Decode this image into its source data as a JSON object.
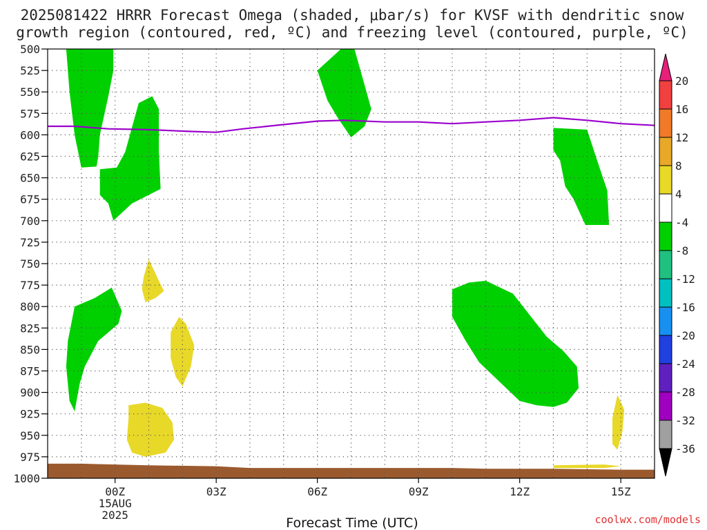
{
  "chart_data": {
    "type": "time-height cross section",
    "title_line1": "2025081422 HRRR Forecast Omega (shaded, μbar/s) for KVSF with dendritic snow",
    "title_line2": "growth region (contoured, red, ºC) and freezing level (contoured, purple, ºC)",
    "xlabel": "Forecast Time (UTC)",
    "credit": "coolwx.com/models",
    "x_unit": "forecast hour (0 = 00Z 15AUG 2025)",
    "xlim": [
      -2,
      16
    ],
    "ylim": [
      1000,
      500
    ],
    "x_ticks": [
      {
        "x": 0,
        "lines": [
          "00Z",
          "15AUG",
          "2025"
        ]
      },
      {
        "x": 3,
        "lines": [
          "03Z"
        ]
      },
      {
        "x": 6,
        "lines": [
          "06Z"
        ]
      },
      {
        "x": 9,
        "lines": [
          "09Z"
        ]
      },
      {
        "x": 12,
        "lines": [
          "12Z"
        ]
      },
      {
        "x": 15,
        "lines": [
          "15Z"
        ]
      }
    ],
    "y_ticks": [
      500,
      525,
      550,
      575,
      600,
      625,
      650,
      675,
      700,
      725,
      750,
      775,
      800,
      825,
      850,
      875,
      900,
      925,
      950,
      975,
      1000
    ],
    "gridlines": true,
    "colorbar": {
      "labels": [
        "20",
        "16",
        "12",
        "8",
        "4",
        "-4",
        "-8",
        "-12",
        "-16",
        "-20",
        "-24",
        "-28",
        "-32",
        "-36"
      ],
      "colors": [
        "#e8207a",
        "#f04040",
        "#f07a28",
        "#e8a828",
        "#e8d828",
        "#ffffff",
        "#00d000",
        "#20c080",
        "#00c0c0",
        "#1890f0",
        "#2040e0",
        "#6020c0",
        "#a000c0",
        "#a0a0a0",
        "#000000"
      ]
    },
    "freezing_level": {
      "color": "#9b00cc",
      "points": [
        [
          -2,
          590
        ],
        [
          -1.2,
          590
        ],
        [
          -0.2,
          593
        ],
        [
          1,
          594
        ],
        [
          2.2,
          596
        ],
        [
          3,
          597
        ],
        [
          3.8,
          593
        ],
        [
          5,
          588
        ],
        [
          6,
          584
        ],
        [
          6.8,
          583
        ],
        [
          8,
          585
        ],
        [
          9,
          585
        ],
        [
          10,
          587
        ],
        [
          11,
          585
        ],
        [
          12,
          583
        ],
        [
          13,
          580
        ],
        [
          14,
          583
        ],
        [
          15,
          587
        ],
        [
          16,
          589
        ]
      ]
    },
    "omega_regions": [
      {
        "color": "#00d000",
        "value_range": [
          -8,
          -4
        ],
        "points": [
          [
            -1.45,
            500
          ],
          [
            -0.05,
            500
          ],
          [
            -0.05,
            525
          ],
          [
            -0.2,
            555
          ],
          [
            -0.45,
            600
          ],
          [
            -0.5,
            625
          ],
          [
            -0.55,
            637
          ],
          [
            -1.0,
            638
          ],
          [
            -1.2,
            600
          ],
          [
            -1.35,
            550
          ]
        ]
      },
      {
        "color": "#00d000",
        "value_range": [
          -8,
          -4
        ],
        "points": [
          [
            0.7,
            563
          ],
          [
            1.1,
            555
          ],
          [
            1.3,
            570
          ],
          [
            1.3,
            620
          ],
          [
            1.35,
            663
          ],
          [
            0.5,
            680
          ],
          [
            -0.05,
            700
          ],
          [
            -0.2,
            680
          ],
          [
            -0.45,
            670
          ],
          [
            -0.45,
            640
          ],
          [
            0.05,
            638
          ],
          [
            0.3,
            620
          ]
        ]
      },
      {
        "color": "#00d000",
        "value_range": [
          -8,
          -4
        ],
        "points": [
          [
            6.7,
            500
          ],
          [
            7.1,
            500
          ],
          [
            7.35,
            535
          ],
          [
            7.6,
            570
          ],
          [
            7.4,
            590
          ],
          [
            7.0,
            603
          ],
          [
            6.6,
            580
          ],
          [
            6.3,
            560
          ],
          [
            6.0,
            525
          ]
        ]
      },
      {
        "color": "#00d000",
        "value_range": [
          -8,
          -4
        ],
        "points": [
          [
            13.0,
            592
          ],
          [
            14.0,
            594
          ],
          [
            14.3,
            630
          ],
          [
            14.6,
            665
          ],
          [
            14.65,
            705
          ],
          [
            13.95,
            705
          ],
          [
            13.6,
            675
          ],
          [
            13.35,
            660
          ],
          [
            13.2,
            630
          ],
          [
            13.0,
            618
          ]
        ]
      },
      {
        "color": "#00d000",
        "value_range": [
          -8,
          -4
        ],
        "points": [
          [
            -1.2,
            800
          ],
          [
            -0.6,
            790
          ],
          [
            -0.1,
            778
          ],
          [
            0.2,
            805
          ],
          [
            0.1,
            820
          ],
          [
            -0.5,
            840
          ],
          [
            -0.9,
            870
          ],
          [
            -1.05,
            890
          ],
          [
            -1.2,
            922
          ],
          [
            -1.35,
            910
          ],
          [
            -1.45,
            870
          ],
          [
            -1.4,
            840
          ]
        ]
      },
      {
        "color": "#00d000",
        "value_range": [
          -8,
          -4
        ],
        "points": [
          [
            10.0,
            780
          ],
          [
            10.5,
            772
          ],
          [
            11.0,
            770
          ],
          [
            11.8,
            785
          ],
          [
            12.4,
            815
          ],
          [
            12.8,
            835
          ],
          [
            13.3,
            852
          ],
          [
            13.7,
            870
          ],
          [
            13.75,
            895
          ],
          [
            13.4,
            912
          ],
          [
            13.0,
            917
          ],
          [
            12.5,
            915
          ],
          [
            12.0,
            910
          ],
          [
            11.6,
            895
          ],
          [
            10.8,
            865
          ],
          [
            10.4,
            840
          ],
          [
            10.0,
            812
          ]
        ]
      },
      {
        "color": "#e8d828",
        "value_range": [
          4,
          8
        ],
        "points": [
          [
            1.0,
            745
          ],
          [
            1.3,
            770
          ],
          [
            1.45,
            782
          ],
          [
            1.2,
            790
          ],
          [
            0.9,
            795
          ],
          [
            0.8,
            780
          ],
          [
            0.85,
            765
          ]
        ]
      },
      {
        "color": "#e8d828",
        "value_range": [
          4,
          8
        ],
        "points": [
          [
            1.9,
            812
          ],
          [
            2.1,
            820
          ],
          [
            2.35,
            845
          ],
          [
            2.25,
            870
          ],
          [
            2.0,
            893
          ],
          [
            1.8,
            882
          ],
          [
            1.65,
            860
          ],
          [
            1.65,
            830
          ]
        ]
      },
      {
        "color": "#e8d828",
        "value_range": [
          4,
          8
        ],
        "points": [
          [
            0.4,
            915
          ],
          [
            0.9,
            912
          ],
          [
            1.4,
            918
          ],
          [
            1.7,
            935
          ],
          [
            1.75,
            955
          ],
          [
            1.5,
            970
          ],
          [
            0.9,
            975
          ],
          [
            0.5,
            970
          ],
          [
            0.35,
            955
          ],
          [
            0.4,
            930
          ]
        ]
      },
      {
        "color": "#e8d828",
        "value_range": [
          4,
          8
        ],
        "points": [
          [
            14.9,
            903
          ],
          [
            15.1,
            920
          ],
          [
            15.05,
            945
          ],
          [
            14.9,
            967
          ],
          [
            14.75,
            960
          ],
          [
            14.75,
            930
          ]
        ]
      },
      {
        "color": "#e8d828",
        "value_range": [
          4,
          8
        ],
        "points": [
          [
            13.0,
            985
          ],
          [
            14.5,
            984
          ],
          [
            15.0,
            986
          ],
          [
            14.5,
            988
          ],
          [
            13.0,
            988
          ]
        ]
      }
    ],
    "terrain": {
      "color": "#9b5a2e",
      "points": [
        [
          -2,
          983
        ],
        [
          -1,
          983
        ],
        [
          0,
          984
        ],
        [
          1,
          985
        ],
        [
          3,
          986
        ],
        [
          4,
          988
        ],
        [
          6,
          988
        ],
        [
          8,
          988
        ],
        [
          9,
          988
        ],
        [
          10,
          988
        ],
        [
          11,
          989
        ],
        [
          13,
          989
        ],
        [
          15,
          990
        ],
        [
          16,
          990
        ]
      ]
    }
  }
}
